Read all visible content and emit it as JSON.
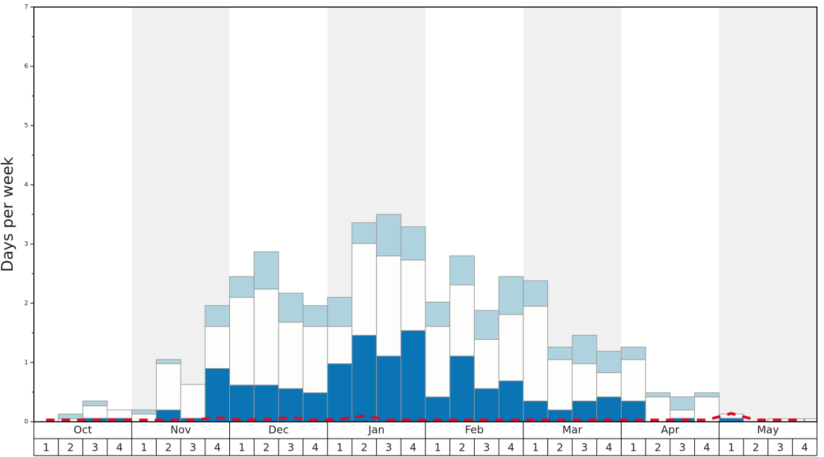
{
  "chart_data": {
    "type": "stacked-bar",
    "y_label": "Days per week",
    "groups": [
      "Oct",
      "Nov",
      "Dec",
      "Jan",
      "Feb",
      "Mar",
      "Apr",
      "May"
    ],
    "categories": [
      "1",
      "2",
      "3",
      "4",
      "1",
      "2",
      "3",
      "4",
      "1",
      "2",
      "3",
      "4",
      "1",
      "2",
      "3",
      "4",
      "1",
      "2",
      "3",
      "4",
      "1",
      "2",
      "3",
      "4",
      "1",
      "2",
      "3",
      "4",
      "1",
      "2",
      "3",
      "4"
    ],
    "series": [
      {
        "color": "#0a74b4",
        "values": [
          0,
          0,
          0.06,
          0.06,
          0,
          0.2,
          0.06,
          0.9,
          0.62,
          0.62,
          0.56,
          0.49,
          0.98,
          1.46,
          1.11,
          1.54,
          0.42,
          1.11,
          0.56,
          0.69,
          0.35,
          0.2,
          0.35,
          0.42,
          0.35,
          0,
          0.06,
          0,
          0.06,
          0,
          0,
          0
        ]
      },
      {
        "color": "#fdfdfb",
        "values": [
          0,
          0.05,
          0.21,
          0.14,
          0.13,
          0.78,
          0.57,
          0.71,
          1.48,
          1.62,
          1.12,
          1.12,
          0.63,
          1.55,
          1.69,
          1.19,
          1.19,
          1.2,
          0.83,
          1.12,
          1.6,
          0.85,
          0.63,
          0.41,
          0.7,
          0.42,
          0.14,
          0.42,
          0.07,
          0,
          0.05,
          0.05
        ]
      },
      {
        "color": "#aed3df",
        "values": [
          0,
          0.08,
          0.08,
          0,
          0.07,
          0.07,
          0,
          0.35,
          0.35,
          0.63,
          0.49,
          0.35,
          0.49,
          0.35,
          0.7,
          0.56,
          0.41,
          0.49,
          0.49,
          0.64,
          0.43,
          0.21,
          0.48,
          0.36,
          0.21,
          0.07,
          0.22,
          0.07,
          0,
          0,
          0,
          0
        ]
      }
    ],
    "line": {
      "color": "#d0102a",
      "values": [
        0.03,
        0.03,
        0.03,
        0.03,
        0.03,
        0.03,
        0.03,
        0.07,
        0.03,
        0.04,
        0.07,
        0.03,
        0.04,
        0.1,
        0.03,
        0.03,
        0.03,
        0.03,
        0.03,
        0.03,
        0.03,
        0.03,
        0.03,
        0.03,
        0.03,
        0.03,
        0.03,
        0.03,
        0.14,
        0.03,
        0.03,
        0.03
      ]
    },
    "ylim": [
      0,
      7
    ],
    "yticks": [
      0,
      1,
      2,
      3,
      4,
      5,
      6,
      7
    ],
    "yminorticks": [
      0.5,
      1.5,
      2.5,
      3.5,
      4.5,
      5.5,
      6.5
    ],
    "shade_color": "#f0f0f0"
  }
}
